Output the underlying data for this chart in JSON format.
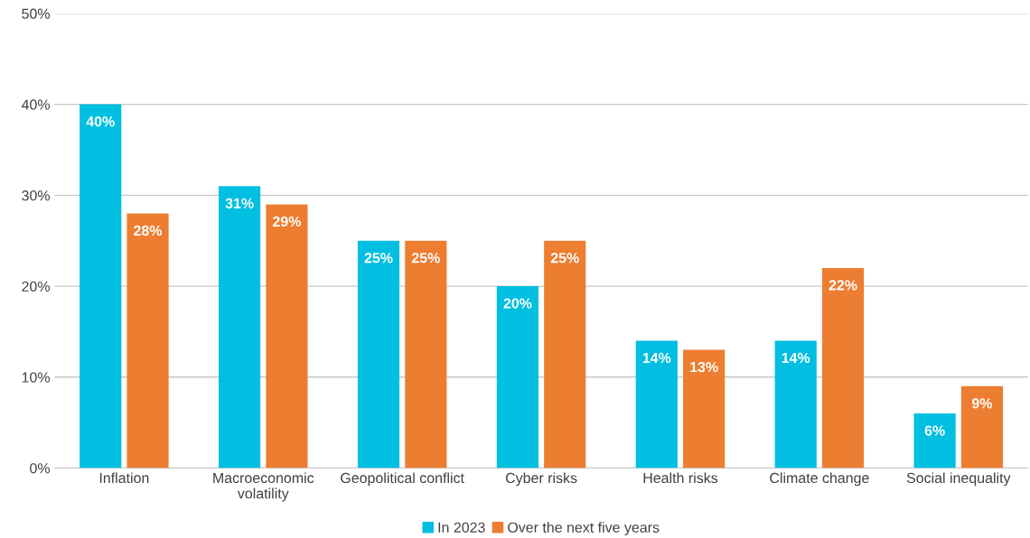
{
  "chart_data": {
    "type": "bar",
    "categories": [
      "Inflation",
      "Macroeconomic\nvolatility",
      "Geopolitical conflict",
      "Cyber risks",
      "Health risks",
      "Climate change",
      "Social inequality"
    ],
    "series": [
      {
        "name": "In 2023",
        "color": "#00bfe0",
        "values": [
          40,
          31,
          25,
          20,
          14,
          14,
          6
        ],
        "value_labels": [
          "40%",
          "31%",
          "25%",
          "20%",
          "14%",
          "14%",
          "6%"
        ]
      },
      {
        "name": "Over the next five years",
        "color": "#ed7d31",
        "values": [
          28,
          29,
          25,
          25,
          13,
          22,
          9
        ],
        "value_labels": [
          "28%",
          "29%",
          "25%",
          "25%",
          "13%",
          "22%",
          "9%"
        ]
      }
    ],
    "ylim": [
      0,
      50
    ],
    "yticks": [
      {
        "value": 0,
        "label": "0%"
      },
      {
        "value": 10,
        "label": "10%"
      },
      {
        "value": 20,
        "label": "20%"
      },
      {
        "value": 30,
        "label": "30%"
      },
      {
        "value": 40,
        "label": "40%"
      },
      {
        "value": 50,
        "label": "50%"
      }
    ],
    "grid": "y",
    "legend": "bottom"
  }
}
